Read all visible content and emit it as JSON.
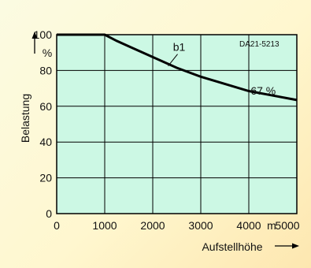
{
  "chart_data": {
    "type": "line",
    "title": "",
    "code": "DA21-5213",
    "xlabel": "Aufstellhöhe",
    "ylabel": "Belastung",
    "x_unit": "m",
    "y_unit": "%",
    "xlim": [
      0,
      5000
    ],
    "ylim": [
      0,
      100
    ],
    "grid": true,
    "x_ticks": [
      "0",
      "1000",
      "2000",
      "3000",
      "4000",
      "5000"
    ],
    "y_ticks": [
      "0",
      "20",
      "40",
      "60",
      "80",
      "100"
    ],
    "series": [
      {
        "name": "b1",
        "x": [
          0,
          1000,
          1250,
          1500,
          2000,
          2500,
          3000,
          3500,
          4000,
          4500,
          5000
        ],
        "y": [
          100,
          100,
          96.5,
          93.5,
          87.5,
          81.5,
          76.5,
          72.5,
          68.5,
          66,
          63.5
        ]
      }
    ],
    "annotations": [
      {
        "text": "b1",
        "x": 2550,
        "y": 90
      },
      {
        "text": "67 %",
        "x": 4300,
        "y": 70
      }
    ],
    "colors": {
      "plot_bg": "#ccf8e4",
      "grid": "#000000",
      "line": "#000000"
    }
  }
}
